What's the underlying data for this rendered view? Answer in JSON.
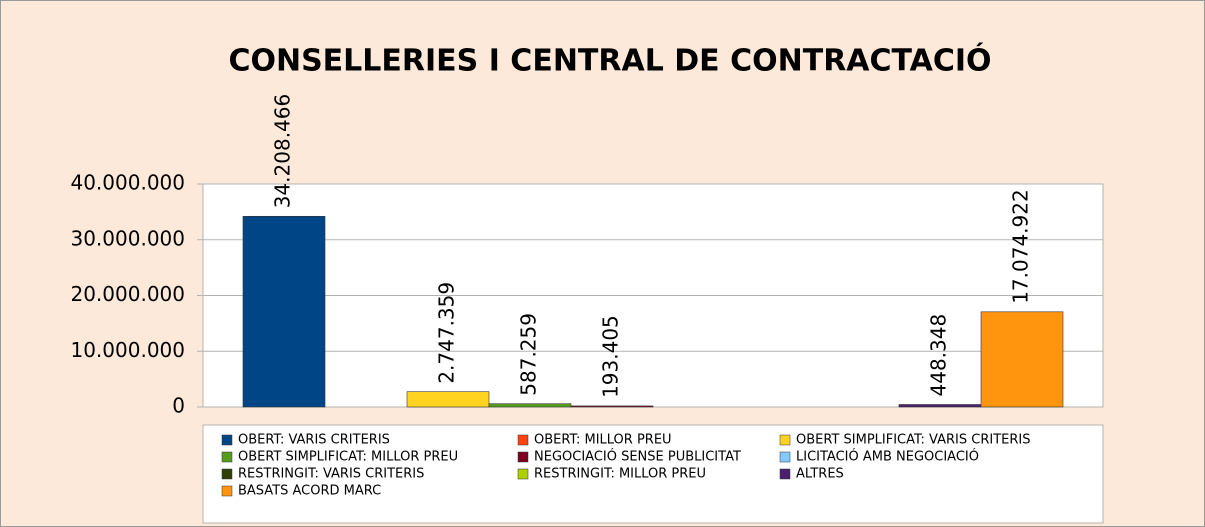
{
  "chart_data": {
    "type": "bar",
    "title": "CONSELLERIES I CENTRAL DE CONTRACTACIÓ",
    "categories": [
      null
    ],
    "series": [
      {
        "name": "OBERT: VARIS CRITERIS",
        "color": "#004586",
        "values": [
          34208466
        ],
        "value_labels": [
          "34.208.466"
        ]
      },
      {
        "name": "OBERT: MILLOR PREU",
        "color": "#ff420e",
        "values": [
          null
        ]
      },
      {
        "name": "OBERT SIMPLIFICAT: VARIS CRITERIS",
        "color": "#ffd320",
        "values": [
          2747359
        ],
        "value_labels": [
          "2.747.359"
        ]
      },
      {
        "name": "OBERT SIMPLIFICAT: MILLOR PREU",
        "color": "#579d1c",
        "values": [
          587259
        ],
        "value_labels": [
          "587.259"
        ]
      },
      {
        "name": "NEGOCIACIÓ SENSE PUBLICITAT",
        "color": "#7e0021",
        "values": [
          193405
        ],
        "value_labels": [
          "193.405"
        ]
      },
      {
        "name": "LICITACIÓ AMB NEGOCIACIÓ",
        "color": "#83caff",
        "values": [
          null
        ]
      },
      {
        "name": "RESTRINGIT: VARIS CRITERIS",
        "color": "#314004",
        "values": [
          null
        ]
      },
      {
        "name": "RESTRINGIT: MILLOR PREU",
        "color": "#aecf00",
        "values": [
          null
        ]
      },
      {
        "name": "ALTRES",
        "color": "#4b1f6f",
        "values": [
          448348
        ],
        "value_labels": [
          "448.348"
        ]
      },
      {
        "name": "BASATS ACORD MARC",
        "color": "#ff950e",
        "values": [
          17074922
        ],
        "value_labels": [
          "17.074.922"
        ]
      }
    ],
    "ylim": [
      0,
      40000000
    ],
    "yticks": [
      0,
      {
        "value": 10000000,
        "label": "10.000.000"
      },
      {
        "value": 20000000,
        "label": "20.000.000"
      },
      {
        "value": 30000000,
        "label": "30.000.000"
      },
      {
        "value": 40000000,
        "label": "40.000.000"
      }
    ],
    "grid": true,
    "legend": "bottom"
  }
}
